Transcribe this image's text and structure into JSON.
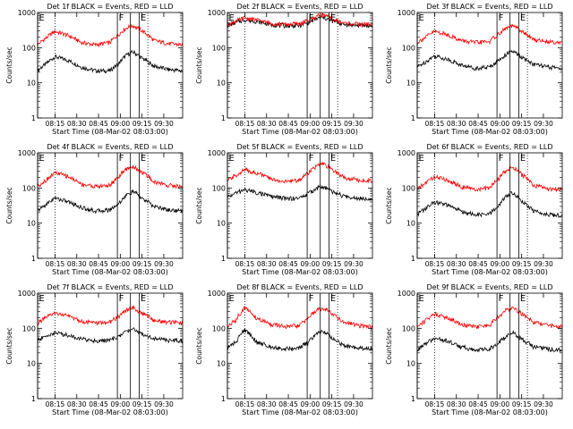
{
  "figure": {
    "ylabel": "Counts/sec",
    "xlabel": "Start Time (08-Mar-02 08:03:00)",
    "xticks": [
      "08:15",
      "08:30",
      "08:45",
      "09:00",
      "09:15",
      "09:30"
    ],
    "yticks": [
      "1",
      "10",
      "100",
      "1000"
    ],
    "marker_labels": {
      "start": "E",
      "flare": "F"
    },
    "colors": {
      "events": "#000000",
      "lld": "#ff0000"
    }
  },
  "chart_data": [
    {
      "type": "line",
      "title": "Det 1f BLACK = Events, RED = LLD",
      "x_unit": "minutes after 08:03:00",
      "ylim": [
        1,
        1000
      ],
      "ylog": true,
      "series": [
        {
          "name": "Events",
          "color": "#000000",
          "x": [
            0,
            6,
            12,
            20,
            30,
            40,
            50,
            56,
            62,
            66,
            72,
            80,
            90,
            100
          ],
          "y": [
            22,
            35,
            55,
            45,
            28,
            22,
            22,
            35,
            65,
            75,
            50,
            30,
            24,
            22
          ]
        },
        {
          "name": "LLD",
          "color": "#ff0000",
          "x": [
            0,
            6,
            12,
            20,
            30,
            40,
            50,
            56,
            62,
            66,
            72,
            80,
            90,
            100
          ],
          "y": [
            120,
            190,
            290,
            230,
            140,
            120,
            140,
            240,
            380,
            420,
            300,
            160,
            130,
            120
          ]
        }
      ]
    },
    {
      "type": "line",
      "title": "Det 2f BLACK = Events, RED = LLD",
      "x_unit": "minutes after 08:03:00",
      "ylim": [
        1,
        1000
      ],
      "ylog": true,
      "series": [
        {
          "name": "Events",
          "color": "#000000",
          "x": [
            0,
            6,
            12,
            20,
            30,
            40,
            50,
            56,
            62,
            66,
            72,
            80,
            90,
            100
          ],
          "y": [
            420,
            520,
            620,
            560,
            450,
            420,
            430,
            520,
            680,
            720,
            580,
            460,
            430,
            420
          ]
        },
        {
          "name": "LLD",
          "color": "#ff0000",
          "x": [
            0,
            6,
            12,
            20,
            30,
            40,
            50,
            56,
            62,
            66,
            72,
            80,
            90,
            100
          ],
          "y": [
            460,
            570,
            700,
            620,
            490,
            460,
            480,
            600,
            800,
            880,
            650,
            500,
            470,
            460
          ]
        }
      ]
    },
    {
      "type": "line",
      "title": "Det 3f BLACK = Events, RED = LLD",
      "x_unit": "minutes after 08:03:00",
      "ylim": [
        1,
        1000
      ],
      "ylog": true,
      "series": [
        {
          "name": "Events",
          "color": "#000000",
          "x": [
            0,
            6,
            12,
            20,
            30,
            40,
            50,
            56,
            62,
            66,
            72,
            80,
            90,
            100
          ],
          "y": [
            28,
            40,
            58,
            48,
            32,
            26,
            28,
            42,
            68,
            78,
            52,
            34,
            28,
            26
          ]
        },
        {
          "name": "LLD",
          "color": "#ff0000",
          "x": [
            0,
            6,
            12,
            20,
            30,
            40,
            50,
            56,
            62,
            66,
            72,
            80,
            90,
            100
          ],
          "y": [
            140,
            200,
            290,
            240,
            160,
            140,
            150,
            240,
            370,
            420,
            290,
            170,
            150,
            140
          ]
        }
      ]
    },
    {
      "type": "line",
      "title": "Det 4f BLACK = Events, RED = LLD",
      "x_unit": "minutes after 08:03:00",
      "ylim": [
        1,
        1000
      ],
      "ylog": true,
      "series": [
        {
          "name": "Events",
          "color": "#000000",
          "x": [
            0,
            6,
            12,
            20,
            30,
            40,
            50,
            56,
            62,
            66,
            72,
            80,
            90,
            100
          ],
          "y": [
            22,
            34,
            52,
            42,
            28,
            22,
            24,
            36,
            65,
            80,
            50,
            30,
            24,
            22
          ]
        },
        {
          "name": "LLD",
          "color": "#ff0000",
          "x": [
            0,
            6,
            12,
            20,
            30,
            40,
            50,
            56,
            62,
            66,
            72,
            80,
            90,
            100
          ],
          "y": [
            110,
            170,
            270,
            220,
            130,
            110,
            120,
            210,
            360,
            410,
            280,
            150,
            120,
            110
          ]
        }
      ]
    },
    {
      "type": "line",
      "title": "Det 5f BLACK = Events, RED = LLD",
      "x_unit": "minutes after 08:03:00",
      "ylim": [
        1,
        1000
      ],
      "ylog": true,
      "series": [
        {
          "name": "Events",
          "color": "#000000",
          "x": [
            0,
            6,
            12,
            20,
            30,
            40,
            50,
            56,
            62,
            66,
            72,
            80,
            90,
            100
          ],
          "y": [
            55,
            72,
            90,
            75,
            58,
            50,
            52,
            70,
            100,
            110,
            80,
            58,
            52,
            50
          ]
        },
        {
          "name": "LLD",
          "color": "#ff0000",
          "x": [
            0,
            6,
            12,
            20,
            30,
            40,
            50,
            56,
            62,
            66,
            72,
            80,
            90,
            100
          ],
          "y": [
            160,
            230,
            330,
            270,
            180,
            150,
            170,
            280,
            430,
            480,
            330,
            200,
            170,
            160
          ]
        }
      ]
    },
    {
      "type": "line",
      "title": "Det 6f BLACK = Events, RED = LLD",
      "x_unit": "minutes after 08:03:00",
      "ylim": [
        1,
        1000
      ],
      "ylog": true,
      "series": [
        {
          "name": "Events",
          "color": "#000000",
          "x": [
            0,
            6,
            12,
            20,
            30,
            40,
            50,
            56,
            62,
            66,
            72,
            80,
            90,
            100
          ],
          "y": [
            18,
            26,
            40,
            33,
            22,
            17,
            18,
            30,
            60,
            75,
            42,
            22,
            18,
            16
          ]
        },
        {
          "name": "LLD",
          "color": "#ff0000",
          "x": [
            0,
            6,
            12,
            20,
            30,
            40,
            50,
            56,
            62,
            66,
            72,
            80,
            90,
            100
          ],
          "y": [
            90,
            140,
            210,
            170,
            110,
            90,
            100,
            180,
            330,
            390,
            240,
            120,
            95,
            90
          ]
        }
      ]
    },
    {
      "type": "line",
      "title": "Det 7f BLACK = Events, RED = LLD",
      "x_unit": "minutes after 08:03:00",
      "ylim": [
        1,
        1000
      ],
      "ylog": true,
      "series": [
        {
          "name": "Events",
          "color": "#000000",
          "x": [
            0,
            6,
            12,
            20,
            30,
            40,
            50,
            56,
            62,
            66,
            72,
            80,
            90,
            100
          ],
          "y": [
            45,
            60,
            75,
            65,
            50,
            44,
            46,
            58,
            85,
            95,
            70,
            52,
            46,
            44
          ]
        },
        {
          "name": "LLD",
          "color": "#ff0000",
          "x": [
            0,
            6,
            12,
            20,
            30,
            40,
            50,
            56,
            62,
            66,
            72,
            80,
            90,
            100
          ],
          "y": [
            140,
            200,
            270,
            230,
            160,
            140,
            150,
            220,
            340,
            380,
            270,
            170,
            150,
            140
          ]
        }
      ]
    },
    {
      "type": "line",
      "title": "Det 8f BLACK = Events, RED = LLD",
      "x_unit": "minutes after 08:03:00",
      "ylim": [
        1,
        1000
      ],
      "ylog": true,
      "series": [
        {
          "name": "Events",
          "color": "#000000",
          "x": [
            0,
            6,
            12,
            20,
            30,
            40,
            50,
            56,
            62,
            66,
            72,
            80,
            90,
            100
          ],
          "y": [
            28,
            40,
            90,
            40,
            30,
            26,
            28,
            40,
            70,
            85,
            52,
            32,
            28,
            26
          ]
        },
        {
          "name": "LLD",
          "color": "#ff0000",
          "x": [
            0,
            6,
            12,
            20,
            30,
            40,
            50,
            56,
            62,
            66,
            72,
            80,
            90,
            100
          ],
          "y": [
            110,
            170,
            380,
            190,
            130,
            110,
            120,
            200,
            330,
            380,
            260,
            150,
            120,
            110
          ]
        }
      ]
    },
    {
      "type": "line",
      "title": "Det 9f BLACK = Events, RED = LLD",
      "x_unit": "minutes after 08:03:00",
      "ylim": [
        1,
        1000
      ],
      "ylog": true,
      "series": [
        {
          "name": "Events",
          "color": "#000000",
          "x": [
            0,
            6,
            12,
            20,
            30,
            40,
            50,
            56,
            62,
            66,
            72,
            80,
            90,
            100
          ],
          "y": [
            24,
            36,
            52,
            44,
            30,
            24,
            26,
            38,
            62,
            75,
            48,
            30,
            26,
            24
          ]
        },
        {
          "name": "LLD",
          "color": "#ff0000",
          "x": [
            0,
            6,
            12,
            20,
            30,
            40,
            50,
            56,
            62,
            66,
            72,
            80,
            90,
            100
          ],
          "y": [
            110,
            170,
            260,
            210,
            130,
            110,
            120,
            210,
            340,
            390,
            260,
            150,
            120,
            110
          ]
        }
      ]
    }
  ],
  "markers": [
    {
      "label": "E",
      "x": 0,
      "style": "solid"
    },
    {
      "label": "",
      "x": 12,
      "style": "dotted"
    },
    {
      "label": "F",
      "x": 55,
      "style": "solid"
    },
    {
      "label": "",
      "x": 64,
      "style": "solid"
    },
    {
      "label": "E",
      "x": 70,
      "style": "solid"
    },
    {
      "label": "",
      "x": 76,
      "style": "dotted"
    }
  ]
}
